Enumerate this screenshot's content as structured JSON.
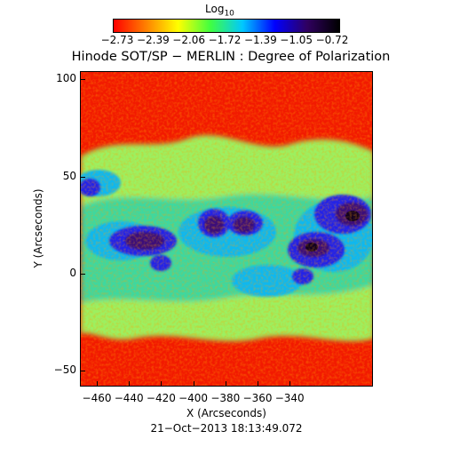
{
  "colorbar": {
    "label_main": "Log",
    "label_sub": "10",
    "ticks": [
      "−2.73",
      "−2.39",
      "−2.06",
      "−1.72",
      "−1.39",
      "−1.05",
      "−0.72"
    ],
    "gradient": [
      "#ff0000",
      "#ff8000",
      "#ffff00",
      "#40ff40",
      "#00c8ff",
      "#0000ff",
      "#300060",
      "#000000"
    ]
  },
  "title": "Hinode SOT/SP − MERLIN : Degree of Polarization",
  "x_axis": {
    "label": "X (Arcseconds)",
    "ticks": [
      "−460",
      "−440",
      "−420",
      "−400",
      "−380",
      "−360",
      "−340"
    ]
  },
  "y_axis": {
    "label": "Y (Arcseconds)",
    "ticks": [
      "100",
      "50",
      "0",
      "−50"
    ]
  },
  "timestamp": "21−Oct−2013 18:13:49.072"
}
